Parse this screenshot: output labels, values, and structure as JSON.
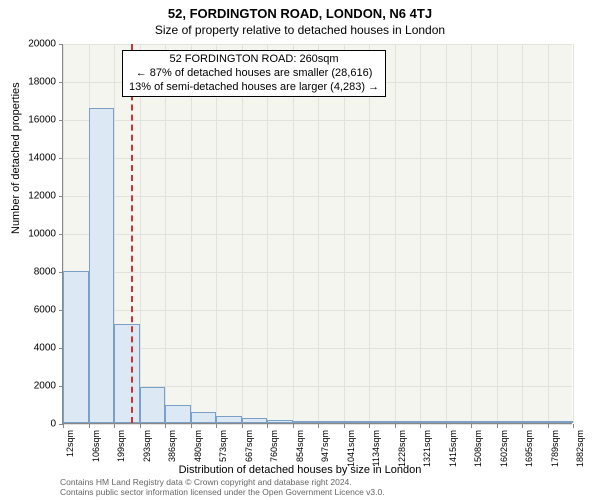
{
  "titles": {
    "line1": "52, FORDINGTON ROAD, LONDON, N6 4TJ",
    "line2": "Size of property relative to detached houses in London"
  },
  "axes": {
    "ylabel": "Number of detached properties",
    "xlabel": "Distribution of detached houses by size in London",
    "ylim": [
      0,
      20000
    ],
    "yticks": [
      0,
      2000,
      4000,
      6000,
      8000,
      10000,
      12000,
      14000,
      16000,
      18000,
      20000
    ],
    "xticks_labels": [
      "12sqm",
      "106sqm",
      "199sqm",
      "293sqm",
      "386sqm",
      "480sqm",
      "573sqm",
      "667sqm",
      "760sqm",
      "854sqm",
      "947sqm",
      "1041sqm",
      "1134sqm",
      "1228sqm",
      "1321sqm",
      "1415sqm",
      "1508sqm",
      "1602sqm",
      "1695sqm",
      "1789sqm",
      "1882sqm"
    ],
    "x_data_min": 12,
    "x_data_max": 1882,
    "x_tick_step": 93.5
  },
  "histogram": {
    "type": "histogram",
    "bin_width_sqm": 93.5,
    "bar_color": "#dde8f5",
    "bar_border": "#7aa0c8",
    "bins": [
      {
        "start": 12,
        "count": 8000
      },
      {
        "start": 106,
        "count": 16600
      },
      {
        "start": 199,
        "count": 5200
      },
      {
        "start": 293,
        "count": 1900
      },
      {
        "start": 386,
        "count": 950
      },
      {
        "start": 480,
        "count": 560
      },
      {
        "start": 573,
        "count": 360
      },
      {
        "start": 667,
        "count": 250
      },
      {
        "start": 760,
        "count": 170
      },
      {
        "start": 854,
        "count": 130
      },
      {
        "start": 947,
        "count": 90
      },
      {
        "start": 1041,
        "count": 70
      },
      {
        "start": 1134,
        "count": 55
      },
      {
        "start": 1228,
        "count": 45
      },
      {
        "start": 1321,
        "count": 35
      },
      {
        "start": 1415,
        "count": 30
      },
      {
        "start": 1508,
        "count": 25
      },
      {
        "start": 1602,
        "count": 22
      },
      {
        "start": 1695,
        "count": 20
      },
      {
        "start": 1789,
        "count": 18
      }
    ]
  },
  "marker": {
    "value_sqm": 260,
    "color": "#cc3333",
    "dash": "dashed"
  },
  "annotation": {
    "line1": "52 FORDINGTON ROAD: 260sqm",
    "line2": "← 87% of detached houses are smaller (28,616)",
    "line3": "13% of semi-detached houses are larger (4,283) →"
  },
  "footer": {
    "line1": "Contains HM Land Registry data © Crown copyright and database right 2024.",
    "line2": "Contains public sector information licensed under the Open Government Licence v3.0."
  },
  "style": {
    "background": "#ffffff",
    "plot_background": "#f5f5f0",
    "grid_color": "#e2e2dc",
    "title_fontsize": 13,
    "subtitle_fontsize": 12,
    "axis_label_fontsize": 11,
    "tick_fontsize": 10,
    "annotation_fontsize": 11,
    "footer_color": "#666666"
  }
}
